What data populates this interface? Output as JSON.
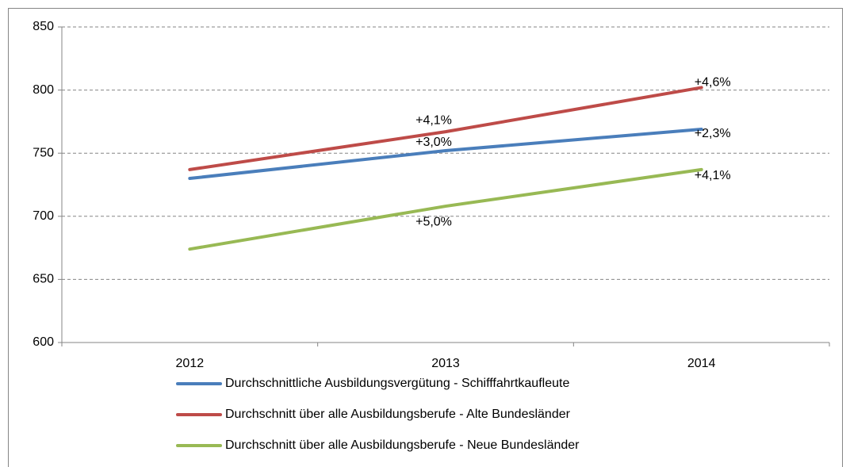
{
  "chart_data": {
    "type": "line",
    "categories": [
      "2012",
      "2013",
      "2014"
    ],
    "series": [
      {
        "name": "Durchschnittliche Ausbildungsvergütung - Schifffahrtkaufleute",
        "color": "#4a7ebb",
        "values": [
          730,
          752,
          769
        ],
        "change_labels": [
          null,
          "+3,0%",
          "+2,3%"
        ]
      },
      {
        "name": "Durchschnitt über alle Ausbildungsberufe - Alte Bundesländer",
        "color": "#be4b48",
        "values": [
          737,
          767,
          802
        ],
        "change_labels": [
          null,
          "+4,1%",
          "+4,6%"
        ]
      },
      {
        "name": "Durchschnitt über alle Ausbildungsberufe - Neue Bundesländer",
        "color": "#98b954",
        "values": [
          674,
          708,
          737
        ],
        "change_labels": [
          null,
          "+5,0%",
          "+4,1%"
        ]
      }
    ],
    "ylim": [
      600,
      850
    ],
    "yticks": [
      600,
      650,
      700,
      750,
      800,
      850
    ],
    "grid": true,
    "legend": "bottom"
  }
}
